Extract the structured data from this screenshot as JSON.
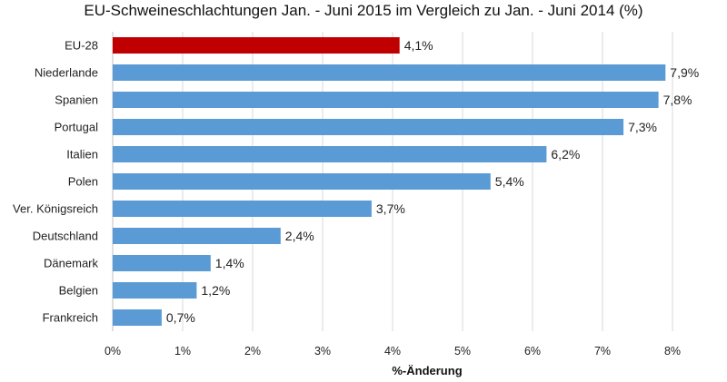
{
  "chart_data": {
    "type": "bar",
    "orientation": "horizontal",
    "title": "EU-Schweineschlachtungen Jan. - Juni 2015 im Vergleich zu Jan. - Juni 2014 (%)",
    "xlabel": "%-Änderung",
    "ylabel": "",
    "categories": [
      "EU-28",
      "Niederlande",
      "Spanien",
      "Portugal",
      "Italien",
      "Polen",
      "Ver. Königsreich",
      "Deutschland",
      "Dänemark",
      "Belgien",
      "Frankreich"
    ],
    "values": [
      4.1,
      7.9,
      7.8,
      7.3,
      6.2,
      5.4,
      3.7,
      2.4,
      1.4,
      1.2,
      0.7
    ],
    "value_labels": [
      "4,1%",
      "7,9%",
      "7,8%",
      "7,3%",
      "6,2%",
      "5,4%",
      "3,7%",
      "2,4%",
      "1,4%",
      "1,2%",
      "0,7%"
    ],
    "xlim": [
      0,
      8
    ],
    "xticks": [
      0,
      1,
      2,
      3,
      4,
      5,
      6,
      7,
      8
    ],
    "xtick_labels": [
      "0%",
      "1%",
      "2%",
      "3%",
      "4%",
      "5%",
      "6%",
      "7%",
      "8%"
    ],
    "grid": "vertical",
    "legend": "none",
    "colors": {
      "highlight": "#C00000",
      "bar": "#5B9BD5",
      "grid": "#D9D9D9",
      "axis": "#BFBFBF"
    },
    "highlight_index": 0
  }
}
